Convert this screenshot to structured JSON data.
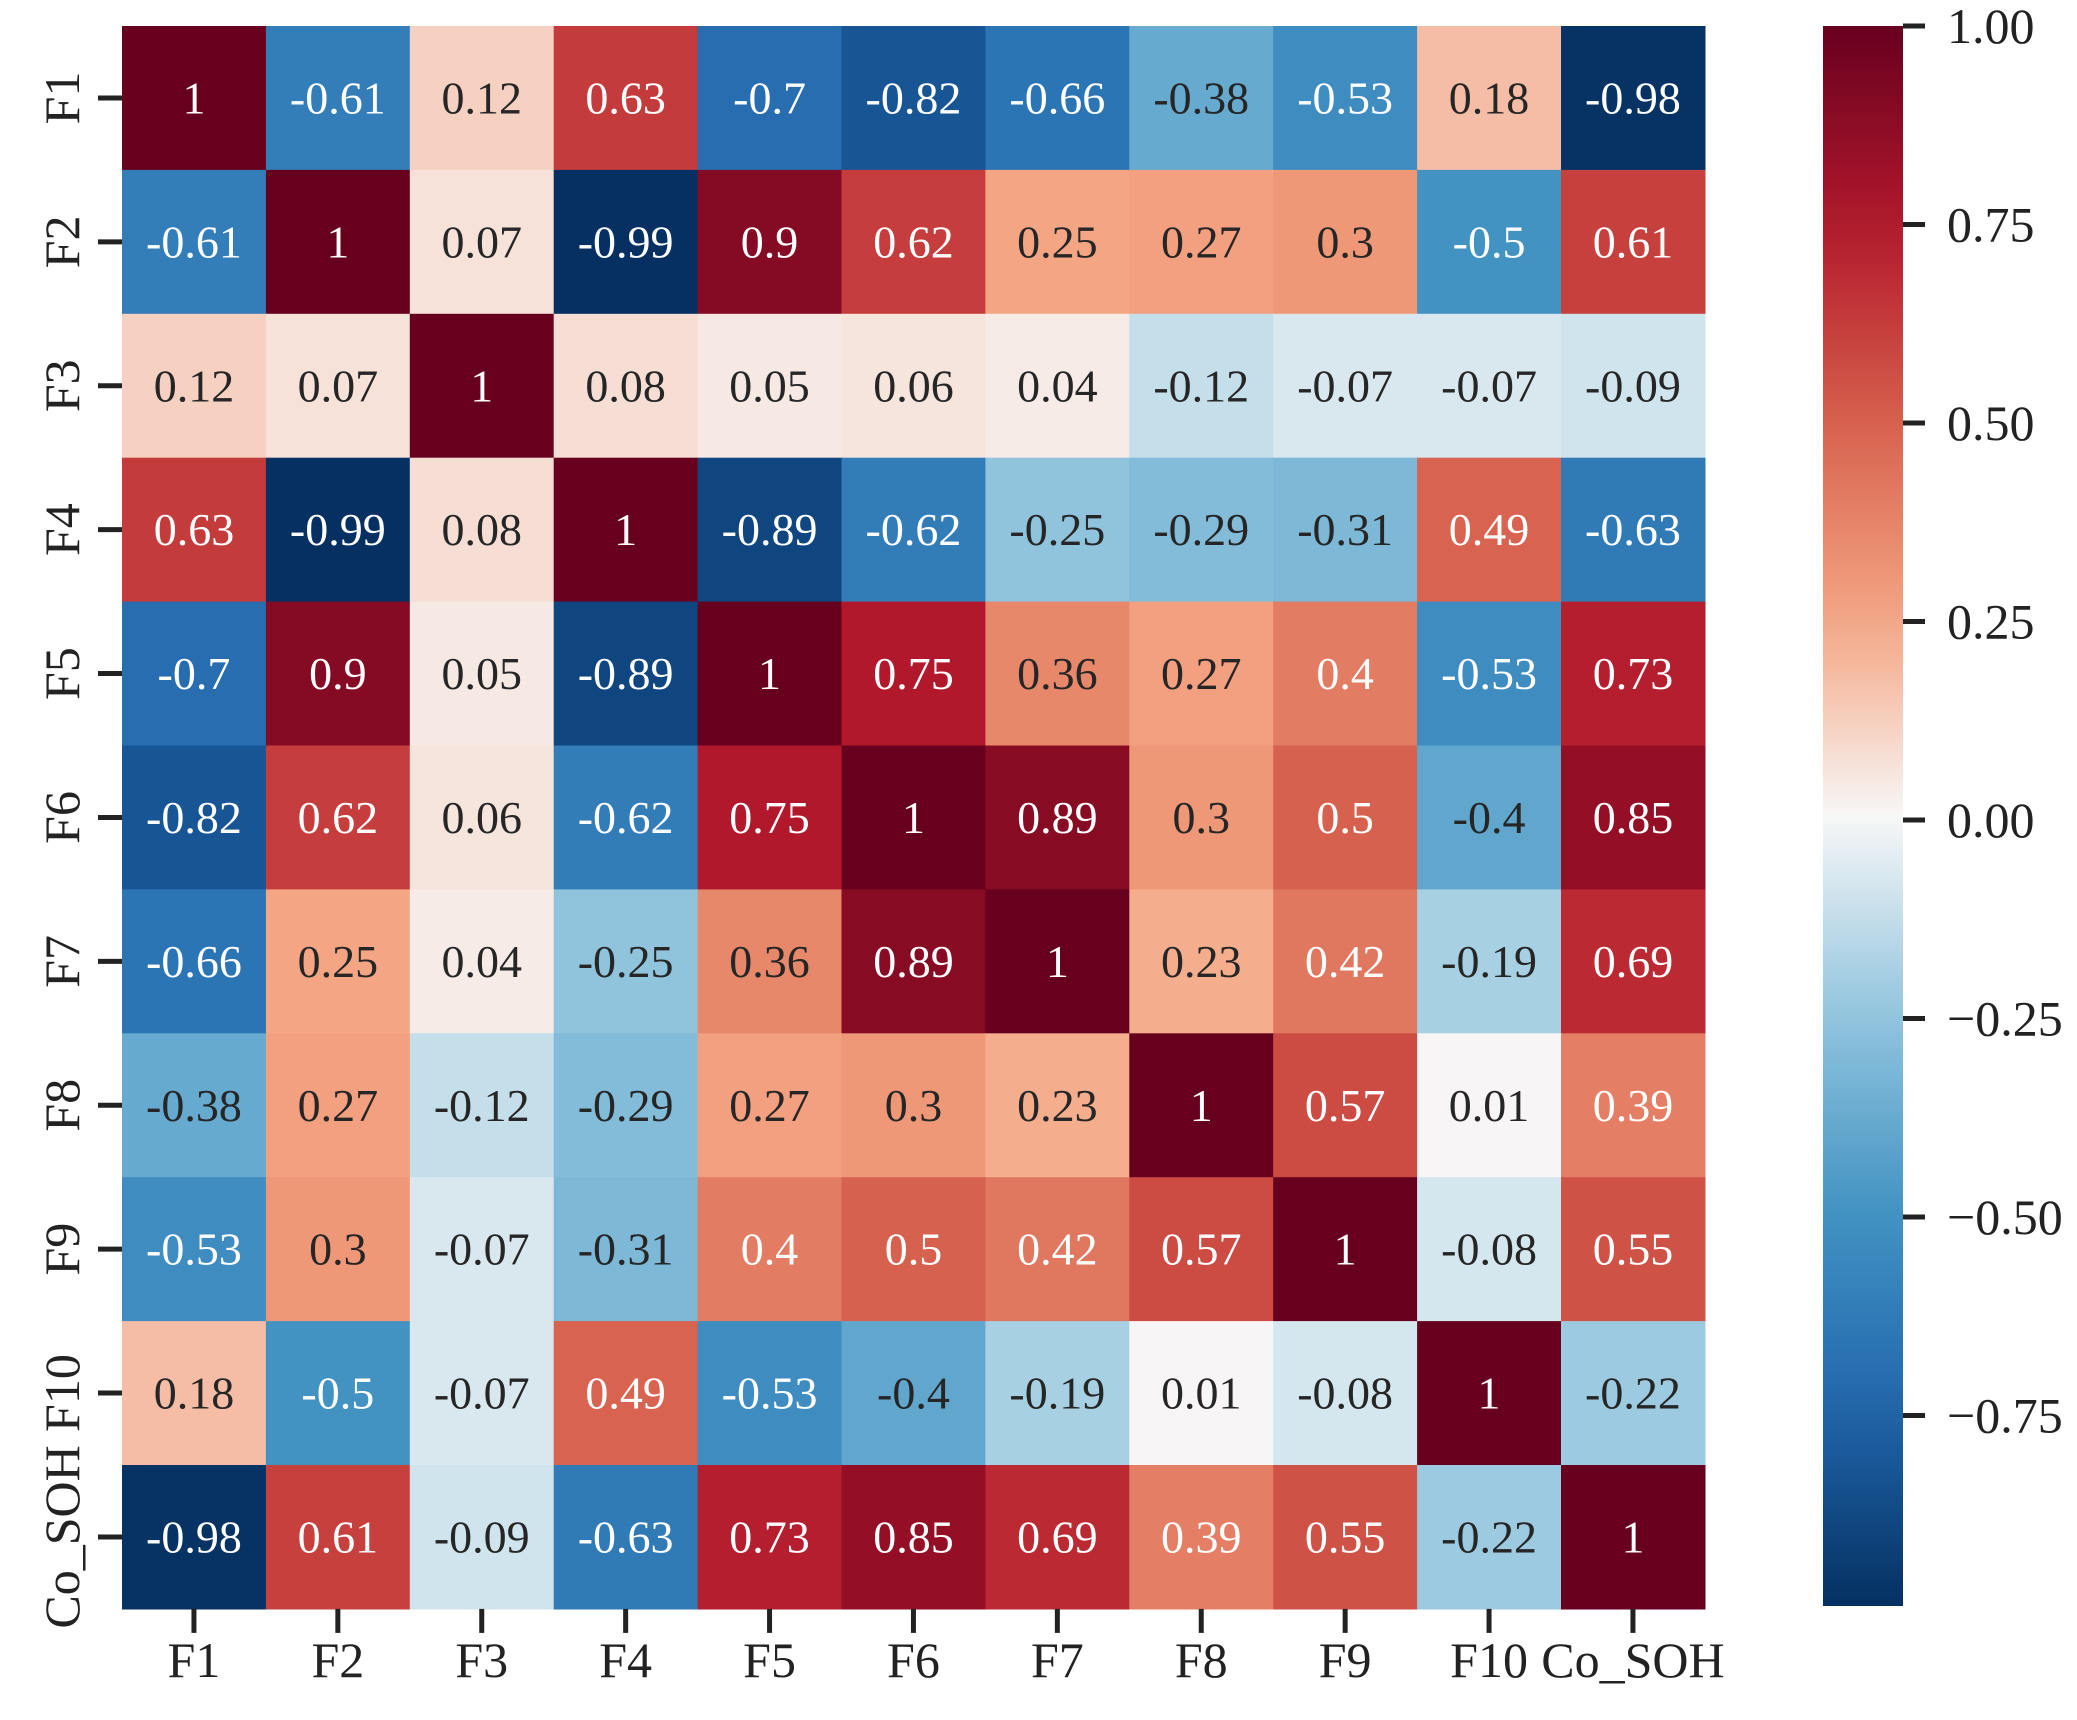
{
  "chart_data": {
    "type": "heatmap",
    "title": "",
    "xlabel": "",
    "ylabel": "",
    "row_labels": [
      "F1",
      "F2",
      "F3",
      "F4",
      "F5",
      "F6",
      "F7",
      "F8",
      "F9",
      "F10",
      "Co_SOH"
    ],
    "col_labels": [
      "F1",
      "F2",
      "F3",
      "F4",
      "F5",
      "F6",
      "F7",
      "F8",
      "F9",
      "F10",
      "Co_SOH"
    ],
    "values": [
      [
        1,
        -0.61,
        0.12,
        0.63,
        -0.7,
        -0.82,
        -0.66,
        -0.38,
        -0.53,
        0.18,
        -0.98
      ],
      [
        -0.61,
        1,
        0.07,
        -0.99,
        0.9,
        0.62,
        0.25,
        0.27,
        0.3,
        -0.5,
        0.61
      ],
      [
        0.12,
        0.07,
        1,
        0.08,
        0.05,
        0.06,
        0.04,
        -0.12,
        -0.07,
        -0.07,
        -0.09
      ],
      [
        0.63,
        -0.99,
        0.08,
        1,
        -0.89,
        -0.62,
        -0.25,
        -0.29,
        -0.31,
        0.49,
        -0.63
      ],
      [
        -0.7,
        0.9,
        0.05,
        -0.89,
        1,
        0.75,
        0.36,
        0.27,
        0.4,
        -0.53,
        0.73
      ],
      [
        -0.82,
        0.62,
        0.06,
        -0.62,
        0.75,
        1,
        0.89,
        0.3,
        0.5,
        -0.4,
        0.85
      ],
      [
        -0.66,
        0.25,
        0.04,
        -0.25,
        0.36,
        0.89,
        1,
        0.23,
        0.42,
        -0.19,
        0.69
      ],
      [
        -0.38,
        0.27,
        -0.12,
        -0.29,
        0.27,
        0.3,
        0.23,
        1,
        0.57,
        0.01,
        0.39
      ],
      [
        -0.53,
        0.3,
        -0.07,
        -0.31,
        0.4,
        0.5,
        0.42,
        0.57,
        1,
        -0.08,
        0.55
      ],
      [
        0.18,
        -0.5,
        -0.07,
        0.49,
        -0.53,
        -0.4,
        -0.19,
        0.01,
        -0.08,
        1,
        -0.22
      ],
      [
        -0.98,
        0.61,
        -0.09,
        -0.63,
        0.73,
        0.85,
        0.69,
        0.39,
        0.55,
        -0.22,
        1
      ]
    ],
    "colormap": "RdBu_r",
    "vmin": -0.99,
    "vmax": 1.0,
    "colorbar": {
      "ticks": [
        1.0,
        0.75,
        0.5,
        0.25,
        0.0,
        -0.25,
        -0.5,
        -0.75
      ],
      "tick_labels": [
        "1.00",
        "0.75",
        "0.50",
        "0.25",
        "0.00",
        "−0.25",
        "−0.50",
        "−0.75"
      ],
      "placement": "right"
    },
    "annotations": "cell values shown"
  }
}
